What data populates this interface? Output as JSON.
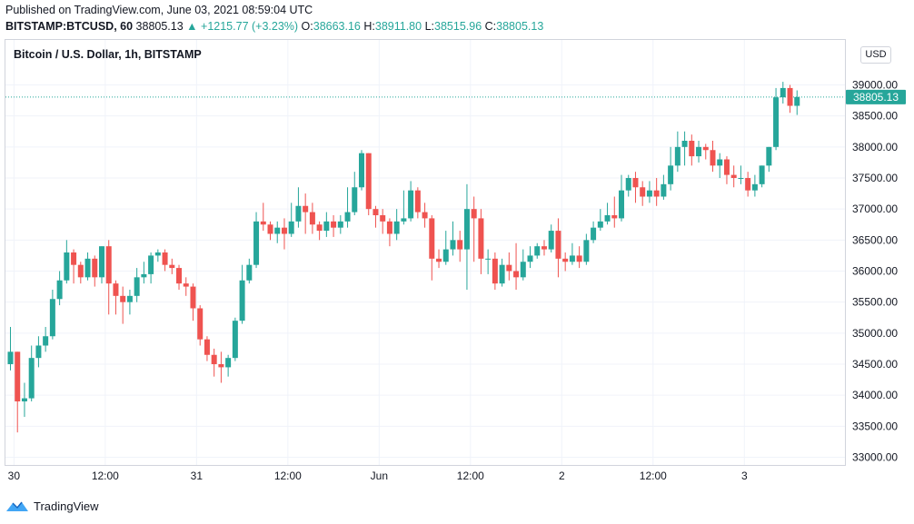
{
  "header": {
    "published": "Published on TradingView.com, June 03, 2021 08:59:04 UTC",
    "symbol": "BITSTAMP:BTCUSD, 60",
    "last": "38805.13",
    "change": "+1215.77 (+3.23%)",
    "o_label": "O:",
    "o_value": "38663.16",
    "h_label": "H:",
    "h_value": "38911.80",
    "l_label": "L:",
    "l_value": "38515.96",
    "c_label": "C:",
    "c_value": "38805.13"
  },
  "chart_title": "Bitcoin / U.S. Dollar, 1h, BITSTAMP",
  "currency": "USD",
  "footer": {
    "brand": "TradingView"
  },
  "colors": {
    "up": "#26a69a",
    "down": "#ef5350",
    "grid": "#f0f3fa",
    "axis_text": "#131722"
  },
  "chart_data": {
    "type": "candlestick",
    "title": "Bitcoin / U.S. Dollar, 1h, BITSTAMP",
    "ylim": [
      32900,
      39400
    ],
    "y_ticks": [
      33000,
      33500,
      34000,
      34500,
      35000,
      35500,
      36000,
      36500,
      37000,
      37500,
      38000,
      38500,
      39000
    ],
    "x_ticks": [
      {
        "label": "30",
        "index": 0.5
      },
      {
        "label": "12:00",
        "index": 13.5
      },
      {
        "label": "31",
        "index": 26.5
      },
      {
        "label": "12:00",
        "index": 39.5
      },
      {
        "label": "Jun",
        "index": 52.5
      },
      {
        "label": "12:00",
        "index": 65.5
      },
      {
        "label": "2",
        "index": 78.5
      },
      {
        "label": "12:00",
        "index": 91.5
      },
      {
        "label": "3",
        "index": 104.5
      }
    ],
    "last_price": 38805.13,
    "last_price_label": "38805.13",
    "candles": [
      [
        34500,
        34700,
        35100,
        34400
      ],
      [
        34700,
        33900,
        34700,
        33400
      ],
      [
        33900,
        33950,
        34200,
        33650
      ],
      [
        33950,
        34600,
        34800,
        33900
      ],
      [
        34600,
        34800,
        34950,
        34450
      ],
      [
        34800,
        34950,
        35100,
        34700
      ],
      [
        34950,
        35550,
        35700,
        34900
      ],
      [
        35550,
        35850,
        36000,
        35450
      ],
      [
        35850,
        36300,
        36500,
        35800
      ],
      [
        36300,
        36100,
        36350,
        35800
      ],
      [
        36100,
        35900,
        36150,
        35800
      ],
      [
        35900,
        36200,
        36300,
        35850
      ],
      [
        36200,
        35900,
        36250,
        35750
      ],
      [
        35900,
        36400,
        36400,
        35800
      ],
      [
        36400,
        35800,
        36500,
        35300
      ],
      [
        35800,
        35600,
        35850,
        35300
      ],
      [
        35600,
        35500,
        35750,
        35150
      ],
      [
        35500,
        35600,
        35700,
        35300
      ],
      [
        35600,
        35900,
        36050,
        35500
      ],
      [
        35900,
        35950,
        36150,
        35800
      ],
      [
        35950,
        36250,
        36300,
        35800
      ],
      [
        36250,
        36300,
        36350,
        36150
      ],
      [
        36300,
        36100,
        36350,
        36000
      ],
      [
        36100,
        36050,
        36200,
        35950
      ],
      [
        36050,
        35800,
        36100,
        35700
      ],
      [
        35800,
        35750,
        35900,
        35600
      ],
      [
        35750,
        35400,
        35800,
        35200
      ],
      [
        35400,
        34900,
        35450,
        34800
      ],
      [
        34900,
        34650,
        34950,
        34550
      ],
      [
        34650,
        34500,
        34750,
        34300
      ],
      [
        34500,
        34450,
        34700,
        34200
      ],
      [
        34450,
        34600,
        34650,
        34300
      ],
      [
        34600,
        35200,
        35250,
        34550
      ],
      [
        35200,
        35850,
        36100,
        35150
      ],
      [
        35850,
        36100,
        36200,
        35800
      ],
      [
        36100,
        36800,
        36950,
        36050
      ],
      [
        36800,
        36750,
        37100,
        36650
      ],
      [
        36750,
        36600,
        36800,
        36500
      ],
      [
        36600,
        36700,
        36800,
        36450
      ],
      [
        36700,
        36600,
        36850,
        36350
      ],
      [
        36600,
        36800,
        37100,
        36550
      ],
      [
        36800,
        37050,
        37350,
        36700
      ],
      [
        37050,
        36950,
        37250,
        36600
      ],
      [
        36950,
        36750,
        37100,
        36600
      ],
      [
        36750,
        36650,
        36800,
        36500
      ],
      [
        36650,
        36800,
        36950,
        36550
      ],
      [
        36800,
        36700,
        36900,
        36550
      ],
      [
        36700,
        36800,
        36900,
        36600
      ],
      [
        36800,
        36950,
        37350,
        36700
      ],
      [
        36950,
        37350,
        37600,
        36900
      ],
      [
        37350,
        37900,
        37950,
        37300
      ],
      [
        37900,
        37000,
        37900,
        36900
      ],
      [
        37000,
        36900,
        37050,
        36700
      ],
      [
        36900,
        36800,
        37000,
        36600
      ],
      [
        36800,
        36600,
        36850,
        36400
      ],
      [
        36600,
        36800,
        37000,
        36500
      ],
      [
        36800,
        36850,
        37300,
        36750
      ],
      [
        36850,
        37300,
        37450,
        36800
      ],
      [
        37300,
        36950,
        37350,
        36850
      ],
      [
        36950,
        36850,
        37100,
        36700
      ],
      [
        36850,
        36200,
        36900,
        35850
      ],
      [
        36200,
        36150,
        36350,
        36050
      ],
      [
        36150,
        36350,
        36650,
        36100
      ],
      [
        36350,
        36500,
        36800,
        36250
      ],
      [
        36500,
        36350,
        36650,
        36150
      ],
      [
        36350,
        37000,
        37400,
        35700
      ],
      [
        37000,
        36850,
        37200,
        36150
      ],
      [
        36850,
        36200,
        37000,
        35950
      ],
      [
        36200,
        36200,
        36350,
        35950
      ],
      [
        36200,
        35800,
        36300,
        35700
      ],
      [
        35800,
        36100,
        36200,
        35750
      ],
      [
        36100,
        36000,
        36300,
        35850
      ],
      [
        36000,
        35900,
        36450,
        35700
      ],
      [
        35900,
        36150,
        36350,
        35850
      ],
      [
        36150,
        36250,
        36400,
        36050
      ],
      [
        36250,
        36400,
        36450,
        36200
      ],
      [
        36400,
        36350,
        36500,
        36250
      ],
      [
        36350,
        36650,
        36750,
        36300
      ],
      [
        36650,
        36200,
        36850,
        35900
      ],
      [
        36200,
        36150,
        36300,
        36000
      ],
      [
        36150,
        36250,
        36450,
        36100
      ],
      [
        36250,
        36150,
        36400,
        36050
      ],
      [
        36150,
        36500,
        36600,
        36100
      ],
      [
        36500,
        36700,
        36800,
        36450
      ],
      [
        36700,
        36800,
        37000,
        36650
      ],
      [
        36800,
        36900,
        37100,
        36750
      ],
      [
        36900,
        36850,
        37200,
        36700
      ],
      [
        36850,
        37300,
        37550,
        36800
      ],
      [
        37300,
        37500,
        37550,
        37200
      ],
      [
        37500,
        37350,
        37600,
        37100
      ],
      [
        37350,
        37200,
        37450,
        37050
      ],
      [
        37200,
        37300,
        37450,
        37100
      ],
      [
        37300,
        37200,
        37500,
        37050
      ],
      [
        37200,
        37400,
        37550,
        37150
      ],
      [
        37400,
        37700,
        38000,
        37300
      ],
      [
        37700,
        38000,
        38250,
        37600
      ],
      [
        38000,
        38100,
        38250,
        37700
      ],
      [
        38100,
        37850,
        38200,
        37700
      ],
      [
        37850,
        38000,
        38100,
        37750
      ],
      [
        38000,
        37950,
        38050,
        37800
      ],
      [
        37950,
        37700,
        38100,
        37600
      ],
      [
        37700,
        37800,
        37900,
        37500
      ],
      [
        37800,
        37550,
        37850,
        37400
      ],
      [
        37550,
        37500,
        37700,
        37350
      ],
      [
        37500,
        37500,
        37700,
        37400
      ],
      [
        37500,
        37300,
        37600,
        37200
      ],
      [
        37300,
        37400,
        37550,
        37200
      ],
      [
        37400,
        37700,
        37700,
        37350
      ],
      [
        37700,
        38000,
        38000,
        37600
      ],
      [
        38000,
        38800,
        38950,
        37950
      ],
      [
        38800,
        38950,
        39050,
        38700
      ],
      [
        38950,
        38663,
        39000,
        38550
      ],
      [
        38663,
        38805,
        38912,
        38516
      ]
    ]
  }
}
